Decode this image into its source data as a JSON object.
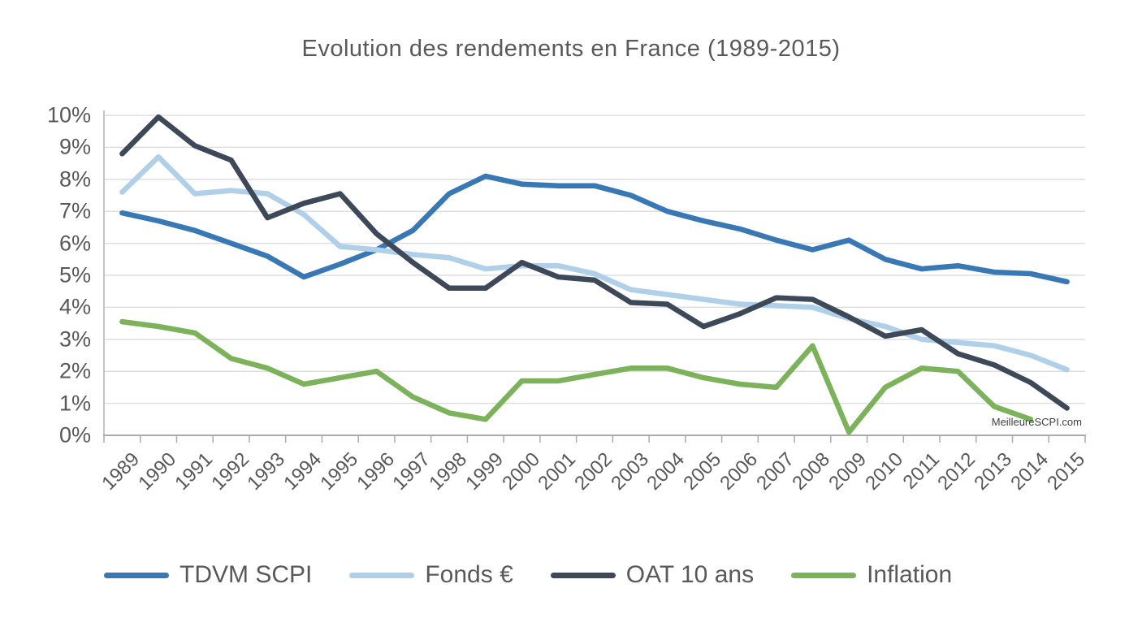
{
  "title": "Evolution des rendements en France (1989-2015)",
  "watermark": "MeilleureSCPI.com",
  "colors": {
    "tdvm": "#3878B4",
    "fonds": "#B0CFE9",
    "oat": "#3D4859",
    "inflation": "#7BB25A",
    "grid": "#DEDEDE",
    "axis": "#ABABAB",
    "label_text": "#595959"
  },
  "y_axis": {
    "labels": [
      "10%",
      "9%",
      "8%",
      "7%",
      "6%",
      "5%",
      "4%",
      "3%",
      "2%",
      "1%",
      "0%"
    ]
  },
  "legend": [
    {
      "label": "TDVM SCPI",
      "color_key": "tdvm"
    },
    {
      "label": "Fonds €",
      "color_key": "fonds"
    },
    {
      "label": "OAT 10 ans",
      "color_key": "oat"
    },
    {
      "label": "Inflation",
      "color_key": "inflation"
    }
  ],
  "chart_data": {
    "type": "line",
    "title": "Evolution des rendements en France (1989-2015)",
    "x": [
      1989,
      1990,
      1991,
      1992,
      1993,
      1994,
      1995,
      1996,
      1997,
      1998,
      1999,
      2000,
      2001,
      2002,
      2003,
      2004,
      2005,
      2006,
      2007,
      2008,
      2009,
      2010,
      2011,
      2012,
      2013,
      2014,
      2015
    ],
    "ylim": [
      0,
      10
    ],
    "grid": true,
    "legend_position": "bottom",
    "y_unit": "%",
    "series": [
      {
        "name": "TDVM SCPI",
        "color_key": "tdvm",
        "values": [
          6.95,
          6.7,
          6.4,
          6.0,
          5.6,
          4.95,
          5.35,
          5.8,
          6.4,
          7.55,
          8.1,
          7.85,
          7.8,
          7.8,
          7.5,
          7.0,
          6.7,
          6.45,
          6.1,
          5.8,
          6.1,
          5.5,
          5.2,
          5.3,
          5.1,
          5.05,
          4.8
        ]
      },
      {
        "name": "Fonds €",
        "color_key": "fonds",
        "values": [
          7.6,
          8.7,
          7.55,
          7.65,
          7.55,
          6.9,
          5.9,
          5.8,
          5.65,
          5.55,
          5.2,
          5.3,
          5.3,
          5.05,
          4.55,
          4.4,
          4.25,
          4.1,
          4.05,
          4.0,
          3.65,
          3.4,
          3.0,
          2.9,
          2.8,
          2.5,
          2.05
        ]
      },
      {
        "name": "OAT 10 ans",
        "color_key": "oat",
        "values": [
          8.8,
          9.95,
          9.05,
          8.6,
          6.8,
          7.25,
          7.55,
          6.3,
          5.4,
          4.6,
          4.6,
          5.4,
          4.95,
          4.85,
          4.15,
          4.1,
          3.4,
          3.8,
          4.3,
          4.25,
          3.7,
          3.1,
          3.3,
          2.55,
          2.2,
          1.65,
          0.85
        ]
      },
      {
        "name": "Inflation",
        "color_key": "inflation",
        "values": [
          3.55,
          3.4,
          3.2,
          2.4,
          2.1,
          1.6,
          1.8,
          2.0,
          1.2,
          0.7,
          0.5,
          1.7,
          1.7,
          1.9,
          2.1,
          2.1,
          1.8,
          1.6,
          1.5,
          2.8,
          0.1,
          1.5,
          2.1,
          2.0,
          0.9,
          0.5,
          null
        ]
      }
    ]
  }
}
